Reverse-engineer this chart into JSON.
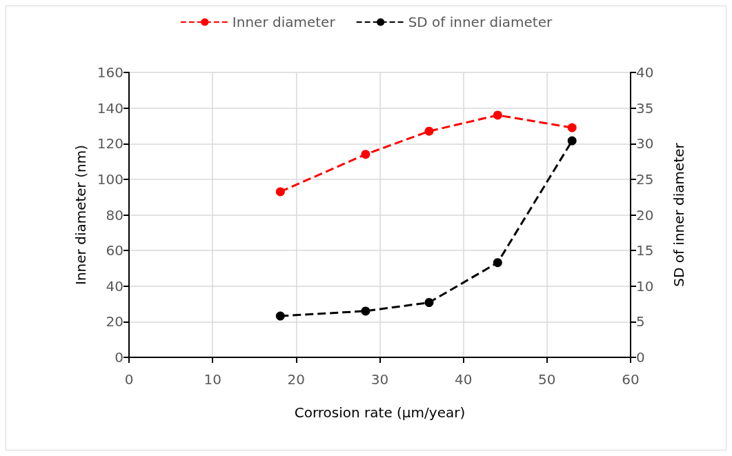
{
  "chart_data": {
    "type": "line",
    "xlabel": "Corrosion rate (µm/year)",
    "ylabel": "Inner diameter (nm)",
    "y2label": "SD of inner diameter",
    "series": [
      {
        "name": "Inner diameter",
        "color": "#ff0000",
        "x": [
          18.1,
          28.3,
          35.9,
          44.1,
          53.0
        ],
        "values": [
          93,
          114,
          127,
          136,
          129
        ]
      },
      {
        "name": "SD of inner diameter",
        "color": "#000000",
        "axis": "y2",
        "x": [
          18.1,
          28.3,
          35.9,
          44.1,
          53.0
        ],
        "values": [
          5.8,
          6.5,
          7.7,
          13.3,
          30.4
        ]
      }
    ],
    "xlim": [
      0,
      60
    ],
    "xticks": [
      0,
      10,
      20,
      30,
      40,
      50,
      60
    ],
    "ylim": [
      0,
      160
    ],
    "yticks": [
      0,
      20,
      40,
      60,
      80,
      100,
      120,
      140,
      160
    ],
    "y2lim": [
      0,
      40
    ],
    "y2ticks": [
      0,
      5,
      10,
      15,
      20,
      25,
      30,
      35,
      40
    ],
    "grid": true,
    "legend": "top",
    "marker": "circle",
    "line_style": "dashed"
  }
}
